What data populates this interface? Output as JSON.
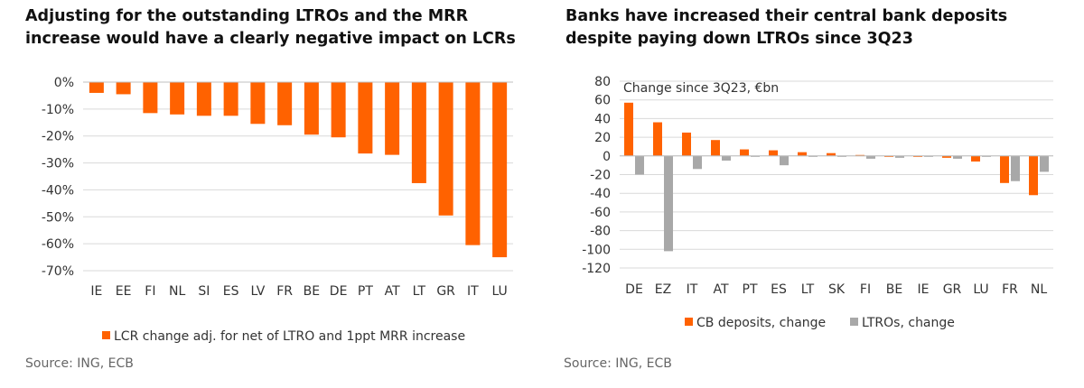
{
  "colors": {
    "orange": "#FF6200",
    "grey": "#A8A8A8",
    "grid": "#D9D9D9",
    "axis": "#BFBFBF"
  },
  "chart_data": [
    {
      "type": "bar",
      "title": "Adjusting for the outstanding LTROs and the MRR increase would have a clearly negative impact on LCRs",
      "categories": [
        "IE",
        "EE",
        "FI",
        "NL",
        "SI",
        "ES",
        "LV",
        "FR",
        "BE",
        "DE",
        "PT",
        "AT",
        "LT",
        "GR",
        "IT",
        "LU"
      ],
      "series": [
        {
          "name": "LCR change adj. for net of LTRO and 1ppt MRR increase",
          "values": [
            -4,
            -4.5,
            -11.5,
            -12,
            -12.5,
            -12.5,
            -15.5,
            -16,
            -19.5,
            -20.5,
            -26.5,
            -27,
            -37.5,
            -49.5,
            -60.5,
            -65
          ]
        }
      ],
      "yticks": [
        "0%",
        "-10%",
        "-20%",
        "-30%",
        "-40%",
        "-50%",
        "-60%",
        "-70%"
      ],
      "ylim": [
        -70,
        0
      ],
      "legend": "bottom",
      "source": "Source: ING, ECB"
    },
    {
      "type": "bar",
      "title": "Banks have increased their central bank deposits despite paying down LTROs since 3Q23",
      "annotation": "Change since 3Q23, €bn",
      "categories": [
        "DE",
        "EZ",
        "IT",
        "AT",
        "PT",
        "ES",
        "LT",
        "SK",
        "FI",
        "BE",
        "IE",
        "GR",
        "LU",
        "FR",
        "NL"
      ],
      "series": [
        {
          "name": "CB deposits, change",
          "values": [
            57,
            36,
            25,
            17,
            7,
            6,
            4,
            3,
            1,
            -1,
            -1,
            -2,
            -6,
            -29,
            -42
          ]
        },
        {
          "name": "LTROs, change",
          "values": [
            -20,
            -102,
            -14,
            -5,
            -1,
            -10,
            -1,
            -1,
            -3,
            -2,
            -1,
            -3,
            -1,
            -27,
            -17
          ]
        }
      ],
      "yticks": [
        "80",
        "60",
        "40",
        "20",
        "0",
        "-20",
        "-40",
        "-60",
        "-80",
        "-100",
        "-120"
      ],
      "ylim": [
        -120,
        80
      ],
      "legend": "bottom",
      "source": "Source: ING, ECB"
    }
  ]
}
